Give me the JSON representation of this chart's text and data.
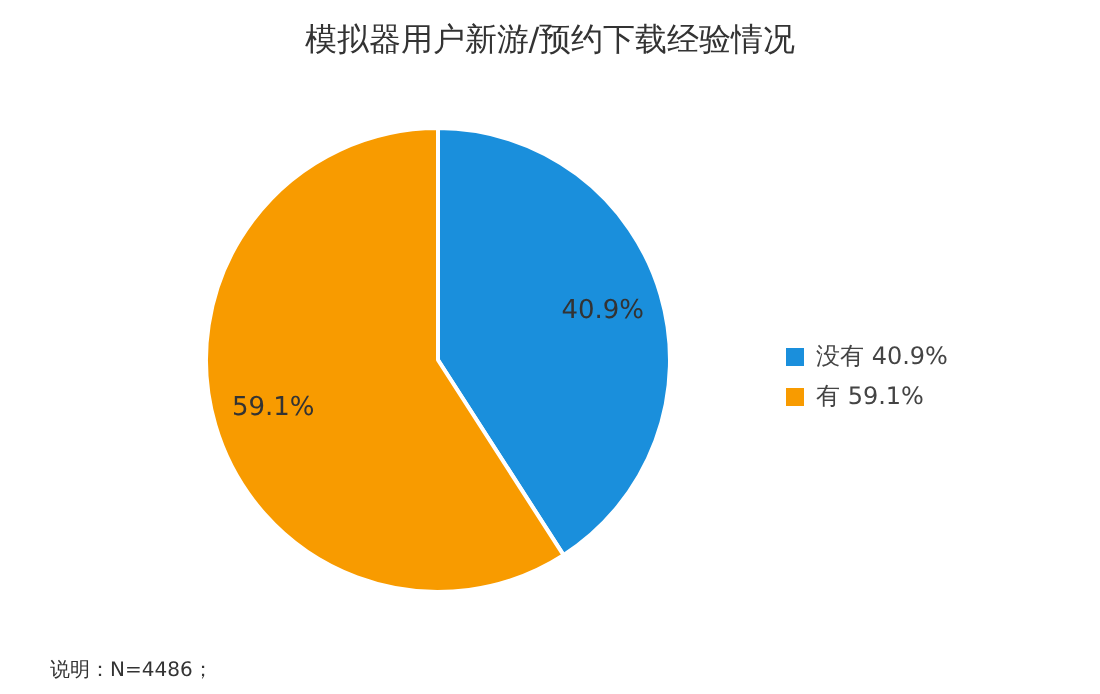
{
  "chart_data": {
    "type": "pie",
    "title": "模拟器用户新游/预约下载经验情况",
    "categories": [
      "没有",
      "有"
    ],
    "values": [
      40.9,
      59.1
    ],
    "value_labels": [
      "40.9%",
      "59.1%"
    ],
    "colors": [
      "#1a8fdc",
      "#f89b00"
    ],
    "legend": "right",
    "annotations": [
      "说明：N=4486；"
    ]
  }
}
